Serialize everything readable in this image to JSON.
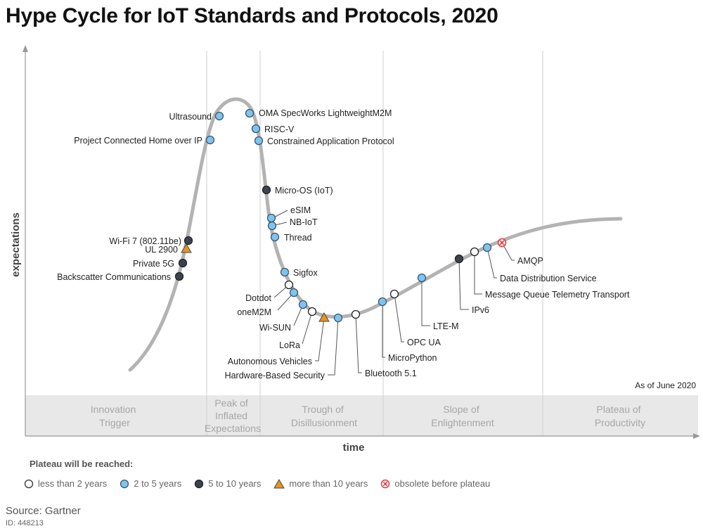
{
  "title": "Hype Cycle for IoT Standards and Protocols, 2020",
  "axes": {
    "y_label": "expectations",
    "x_label": "time"
  },
  "as_of": "As of June 2020",
  "phases": [
    {
      "id": "innovation",
      "lines": [
        "Innovation",
        "Trigger"
      ]
    },
    {
      "id": "peak",
      "lines": [
        "Peak of",
        "Inflated",
        "Expectations"
      ]
    },
    {
      "id": "trough",
      "lines": [
        "Trough of",
        "Disillusionment"
      ]
    },
    {
      "id": "slope",
      "lines": [
        "Slope of",
        "Enlightenment"
      ]
    },
    {
      "id": "plateau",
      "lines": [
        "Plateau of",
        "Productivity"
      ]
    }
  ],
  "legend": {
    "title": "Plateau will be reached:",
    "items": [
      {
        "key": "lt2",
        "label": "less than 2 years"
      },
      {
        "key": "2to5",
        "label": "2 to 5 years"
      },
      {
        "key": "5to10",
        "label": "5 to 10 years"
      },
      {
        "key": "gt10",
        "label": "more than 10 years"
      },
      {
        "key": "obsolete",
        "label": "obsolete before plateau"
      }
    ]
  },
  "colors": {
    "lt2": "#ffffff",
    "2to5": "#7fc4ef",
    "5to10": "#3b4350",
    "gt10": "#e8941e",
    "obsolete": "#e0383a",
    "curve": "#b3b3b3",
    "phase_band": "#e8e8e8"
  },
  "technologies": [
    {
      "name": "Ultrasound",
      "category": "2to5"
    },
    {
      "name": "OMA SpecWorks LightweightM2M",
      "category": "2to5"
    },
    {
      "name": "RISC-V",
      "category": "2to5"
    },
    {
      "name": "Project Connected Home over IP",
      "category": "2to5"
    },
    {
      "name": "Constrained Application Protocol",
      "category": "2to5"
    },
    {
      "name": "Micro-OS (IoT)",
      "category": "5to10"
    },
    {
      "name": "eSIM",
      "category": "2to5"
    },
    {
      "name": "NB-IoT",
      "category": "2to5"
    },
    {
      "name": "Thread",
      "category": "2to5"
    },
    {
      "name": "Wi-Fi 7 (802.11be)",
      "category": "5to10"
    },
    {
      "name": "UL 2900",
      "category": "gt10"
    },
    {
      "name": "Private 5G",
      "category": "5to10"
    },
    {
      "name": "Backscatter Communications",
      "category": "5to10"
    },
    {
      "name": "Sigfox",
      "category": "2to5"
    },
    {
      "name": "Dotdot",
      "category": "lt2"
    },
    {
      "name": "oneM2M",
      "category": "2to5"
    },
    {
      "name": "Wi-SUN",
      "category": "2to5"
    },
    {
      "name": "LoRa",
      "category": "lt2"
    },
    {
      "name": "Autonomous Vehicles",
      "category": "gt10"
    },
    {
      "name": "Hardware-Based Security",
      "category": "2to5"
    },
    {
      "name": "Bluetooth 5.1",
      "category": "lt2"
    },
    {
      "name": "MicroPython",
      "category": "2to5"
    },
    {
      "name": "OPC UA",
      "category": "lt2"
    },
    {
      "name": "LTE-M",
      "category": "2to5"
    },
    {
      "name": "IPv6",
      "category": "5to10"
    },
    {
      "name": "Message Queue Telemetry Transport",
      "category": "lt2"
    },
    {
      "name": "Data Distribution Service",
      "category": "2to5"
    },
    {
      "name": "AMQP",
      "category": "obsolete"
    }
  ],
  "source": "Source: Gartner",
  "doc_id": "ID: 448213"
}
